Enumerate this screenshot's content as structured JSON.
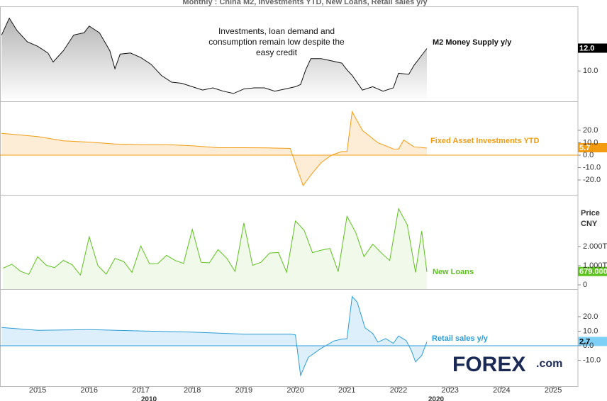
{
  "title": "Monthly : China M2, Investments YTD, New Loans, Retail sales y/y",
  "annotation": [
    "Investments, loan demand and",
    "consumption remain low despite the",
    "easy credit"
  ],
  "decade_labels": [
    "2010",
    "2020"
  ],
  "logo": {
    "brand": "FOREX",
    "suffix": ".com"
  },
  "chart_data": [
    {
      "type": "area",
      "fill": "bottom",
      "zero_line": false,
      "grid": false,
      "series": [
        {
          "name": "M2 Money Supply y/y",
          "color": "#111111",
          "last_label": "12.0",
          "x": [
            2014.3,
            2014.45,
            2014.6,
            2014.8,
            2015.0,
            2015.2,
            2015.3,
            2015.5,
            2015.7,
            2015.9,
            2016.0,
            2016.2,
            2016.4,
            2016.5,
            2016.6,
            2016.8,
            2017.0,
            2017.2,
            2017.4,
            2017.6,
            2017.8,
            2018.0,
            2018.2,
            2018.4,
            2018.6,
            2018.8,
            2019.0,
            2019.2,
            2019.4,
            2019.6,
            2019.8,
            2020.0,
            2020.1,
            2020.2,
            2020.3,
            2020.5,
            2020.7,
            2020.9,
            2021.0,
            2021.1,
            2021.3,
            2021.5,
            2021.7,
            2021.9,
            2022.0,
            2022.2,
            2022.3,
            2022.45,
            2022.55
          ],
          "values": [
            13.2,
            14.7,
            13.6,
            12.6,
            12.2,
            11.6,
            10.8,
            11.8,
            13.2,
            13.4,
            14.0,
            13.4,
            11.8,
            10.2,
            11.5,
            11.6,
            11.2,
            10.6,
            9.6,
            9.0,
            8.9,
            8.6,
            8.3,
            8.5,
            8.2,
            8.0,
            8.4,
            8.5,
            8.5,
            8.2,
            8.4,
            8.6,
            8.8,
            10.1,
            11.1,
            11.1,
            10.9,
            10.7,
            10.1,
            9.6,
            8.3,
            8.6,
            8.2,
            8.5,
            9.8,
            9.7,
            10.5,
            11.4,
            12.0
          ]
        }
      ],
      "xlim": [
        2014.27,
        2025.48
      ],
      "ylim": [
        7.3,
        15.75
      ],
      "yticks": [
        {
          "value": 10,
          "label": "10.0"
        }
      ]
    },
    {
      "type": "area",
      "fill": "zero",
      "zero_line": true,
      "grid": false,
      "series": [
        {
          "name": "Fixed Asset Investments YTD",
          "color": "#f39c12",
          "last_label": "5.7",
          "x": [
            2014.3,
            2014.6,
            2015.0,
            2015.5,
            2016.0,
            2016.5,
            2017.0,
            2017.5,
            2018.0,
            2018.5,
            2019.0,
            2019.5,
            2019.9,
            2020.05,
            2020.15,
            2020.3,
            2020.5,
            2020.7,
            2020.9,
            2021.0,
            2021.1,
            2021.3,
            2021.6,
            2021.9,
            2022.0,
            2022.1,
            2022.3,
            2022.55
          ],
          "values": [
            17.5,
            16.5,
            15.0,
            11.5,
            10.5,
            9.0,
            8.5,
            8.5,
            7.5,
            6.0,
            6.0,
            5.8,
            5.4,
            -13.0,
            -24.5,
            -16.0,
            -6.0,
            0.0,
            2.9,
            2.9,
            35.0,
            20.0,
            10.0,
            5.0,
            4.9,
            12.2,
            6.7,
            5.7
          ]
        }
      ],
      "xlim": [
        2014.27,
        2025.48
      ],
      "ylim": [
        -32,
        43.4
      ],
      "yticks": [
        {
          "value": 20,
          "label": "20.0"
        },
        {
          "value": 10,
          "label": "10.0"
        },
        {
          "value": 0,
          "label": "0.0"
        },
        {
          "value": -10,
          "label": "-10.0"
        },
        {
          "value": -20,
          "label": "-20.0"
        }
      ]
    },
    {
      "type": "area",
      "fill": "bottom",
      "zero_line": false,
      "grid": false,
      "y_label": [
        "Price",
        "CNY"
      ],
      "series": [
        {
          "name": "New Loans",
          "color": "#5cc21c",
          "last_label": "679.000",
          "x": [
            2014.33,
            2014.5,
            2014.67,
            2014.83,
            2015.0,
            2015.17,
            2015.33,
            2015.5,
            2015.67,
            2015.83,
            2016.0,
            2016.17,
            2016.33,
            2016.5,
            2016.67,
            2016.83,
            2017.0,
            2017.17,
            2017.33,
            2017.5,
            2017.67,
            2017.83,
            2018.0,
            2018.17,
            2018.33,
            2018.5,
            2018.67,
            2018.83,
            2019.0,
            2019.17,
            2019.33,
            2019.5,
            2019.67,
            2019.83,
            2020.0,
            2020.17,
            2020.33,
            2020.5,
            2020.67,
            2020.83,
            2021.0,
            2021.17,
            2021.33,
            2021.5,
            2021.67,
            2021.83,
            2022.0,
            2022.17,
            2022.33,
            2022.45,
            2022.55
          ],
          "values": [
            870,
            1080,
            700,
            550,
            1470,
            1020,
            900,
            1280,
            1050,
            510,
            2510,
            1000,
            560,
            1380,
            1220,
            650,
            2030,
            1100,
            1110,
            1540,
            1270,
            1120,
            2900,
            1180,
            1150,
            1840,
            1380,
            700,
            3230,
            1020,
            1180,
            1660,
            1690,
            660,
            3340,
            2850,
            1680,
            1810,
            1900,
            690,
            3580,
            2730,
            1470,
            2120,
            1660,
            1270,
            3980,
            3130,
            650,
            2810,
            679
          ]
        }
      ],
      "xlim": [
        2014.27,
        2025.48
      ],
      "ylim": [
        -220,
        4700
      ],
      "yticks": [
        {
          "value": 2000,
          "label": "2.000T"
        },
        {
          "value": 1000,
          "label": "1.000T"
        },
        0
      ]
    },
    {
      "type": "area",
      "fill": "zero",
      "zero_line": true,
      "grid": false,
      "series": [
        {
          "name": "Retail sales y/y",
          "color": "#2b9cd8",
          "last_label": "2.7",
          "x": [
            2014.3,
            2015.0,
            2016.0,
            2017.0,
            2018.0,
            2019.0,
            2019.9,
            2020.0,
            2020.1,
            2020.25,
            2020.5,
            2020.75,
            2020.9,
            2021.0,
            2021.1,
            2021.2,
            2021.35,
            2021.5,
            2021.6,
            2021.75,
            2021.9,
            2022.0,
            2022.15,
            2022.25,
            2022.33,
            2022.45,
            2022.55
          ],
          "values": [
            12.5,
            10.6,
            11.1,
            10.2,
            9.4,
            8.0,
            8.0,
            7.5,
            -20.5,
            -8.0,
            -1.8,
            3.3,
            4.6,
            4.8,
            33.9,
            30.0,
            12.4,
            8.5,
            2.5,
            4.9,
            1.7,
            6.7,
            3.5,
            -3.5,
            -11.1,
            -6.7,
            2.7
          ]
        }
      ],
      "xlim": [
        2014.27,
        2025.48
      ],
      "ylim": [
        -27.8,
        39
      ],
      "yticks": [
        {
          "value": 20,
          "label": "20.0"
        },
        {
          "value": 10,
          "label": "10.0"
        },
        {
          "value": 0,
          "label": "0.0"
        },
        {
          "value": -10,
          "label": "-10.0"
        }
      ],
      "xticks": [
        2015,
        2016,
        2017,
        2018,
        2019,
        2020,
        2021,
        2022,
        2023,
        2024,
        2025
      ]
    }
  ]
}
